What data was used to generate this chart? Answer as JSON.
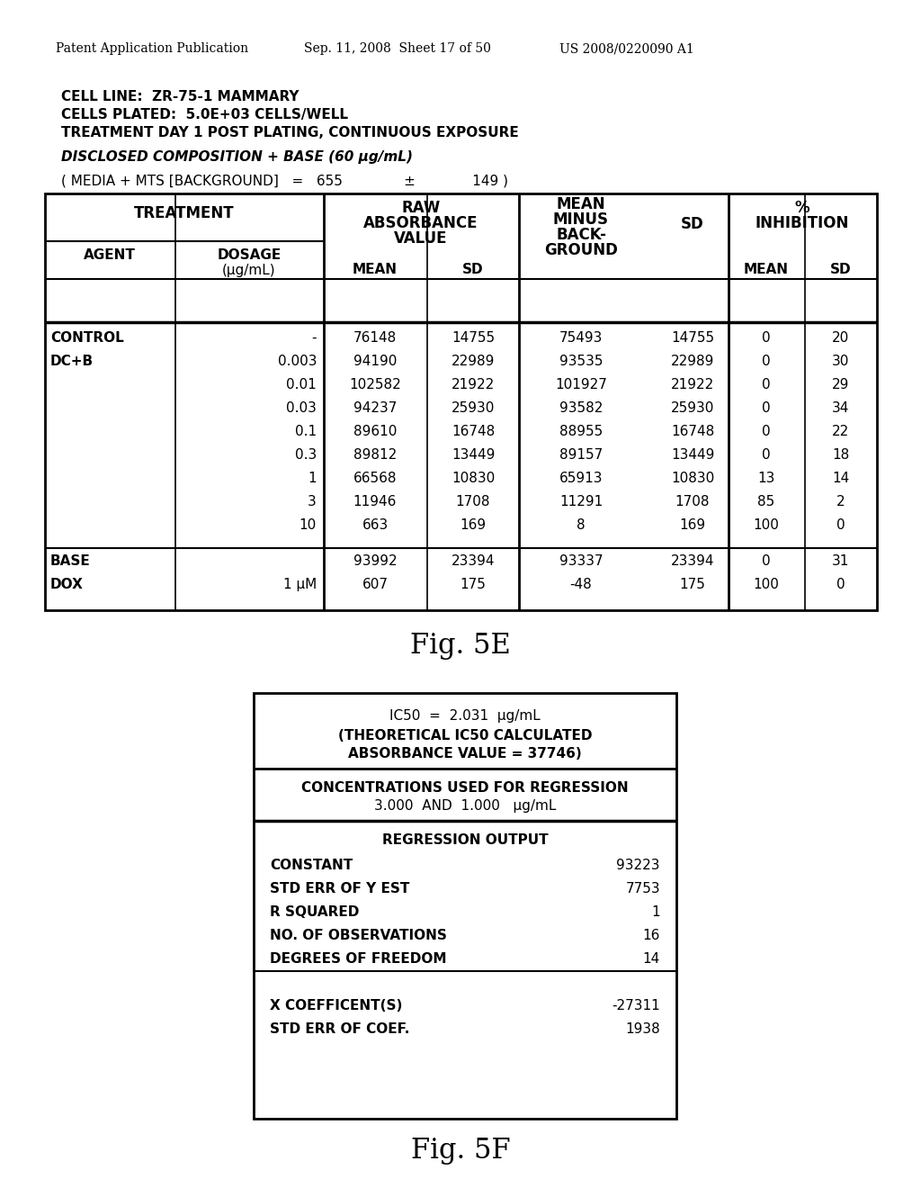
{
  "page_header_left": "Patent Application Publication",
  "page_header_mid": "Sep. 11, 2008  Sheet 17 of 50",
  "page_header_right": "US 2008/0220090 A1",
  "cell_line": "CELL LINE:  ZR-75-1 MAMMARY",
  "cells_plated": "CELLS PLATED:  5.0E+03 CELLS/WELL",
  "treatment": "TREATMENT DAY 1 POST PLATING, CONTINUOUS EXPOSURE",
  "composition": "DISCLOSED COMPOSITION + BASE (60 μg/mL)",
  "background": "( MEDIA + MTS [BACKGROUND]   =   655              ±             149 )",
  "fig5e_label": "Fig. 5E",
  "fig5f_label": "Fig. 5F",
  "table5e_rows": [
    [
      "CONTROL",
      "-",
      "76148",
      "14755",
      "75493",
      "14755",
      "0",
      "20"
    ],
    [
      "DC+B",
      "0.003",
      "94190",
      "22989",
      "93535",
      "22989",
      "0",
      "30"
    ],
    [
      "",
      "0.01",
      "102582",
      "21922",
      "101927",
      "21922",
      "0",
      "29"
    ],
    [
      "",
      "0.03",
      "94237",
      "25930",
      "93582",
      "25930",
      "0",
      "34"
    ],
    [
      "",
      "0.1",
      "89610",
      "16748",
      "88955",
      "16748",
      "0",
      "22"
    ],
    [
      "",
      "0.3",
      "89812",
      "13449",
      "89157",
      "13449",
      "0",
      "18"
    ],
    [
      "",
      "1",
      "66568",
      "10830",
      "65913",
      "10830",
      "13",
      "14"
    ],
    [
      "",
      "3",
      "11946",
      "1708",
      "11291",
      "1708",
      "85",
      "2"
    ],
    [
      "",
      "10",
      "663",
      "169",
      "8",
      "169",
      "100",
      "0"
    ],
    [
      "BASE",
      "",
      "93992",
      "23394",
      "93337",
      "23394",
      "0",
      "31"
    ],
    [
      "DOX",
      "1 μM",
      "607",
      "175",
      "-48",
      "175",
      "100",
      "0"
    ]
  ],
  "table5f_ic50_1": "IC50  =  2.031  μg/mL",
  "table5f_ic50_2": "(THEORETICAL IC50 CALCULATED",
  "table5f_ic50_3": "ABSORBANCE VALUE = 37746)",
  "table5f_conc_1": "CONCENTRATIONS USED FOR REGRESSION",
  "table5f_conc_2": "3.000  AND  1.000   μg/mL",
  "table5f_reg_header": "REGRESSION OUTPUT",
  "table5f_reg_rows": [
    [
      "CONSTANT",
      "93223"
    ],
    [
      "STD ERR OF Y EST",
      "7753"
    ],
    [
      "R SQUARED",
      "1"
    ],
    [
      "NO. OF OBSERVATIONS",
      "16"
    ],
    [
      "DEGREES OF FREEDOM",
      "14"
    ],
    [
      "",
      ""
    ],
    [
      "X COEFFICENT(S)",
      "-27311"
    ],
    [
      "STD ERR OF COEF.",
      "1938"
    ]
  ],
  "bg_color": "#ffffff"
}
